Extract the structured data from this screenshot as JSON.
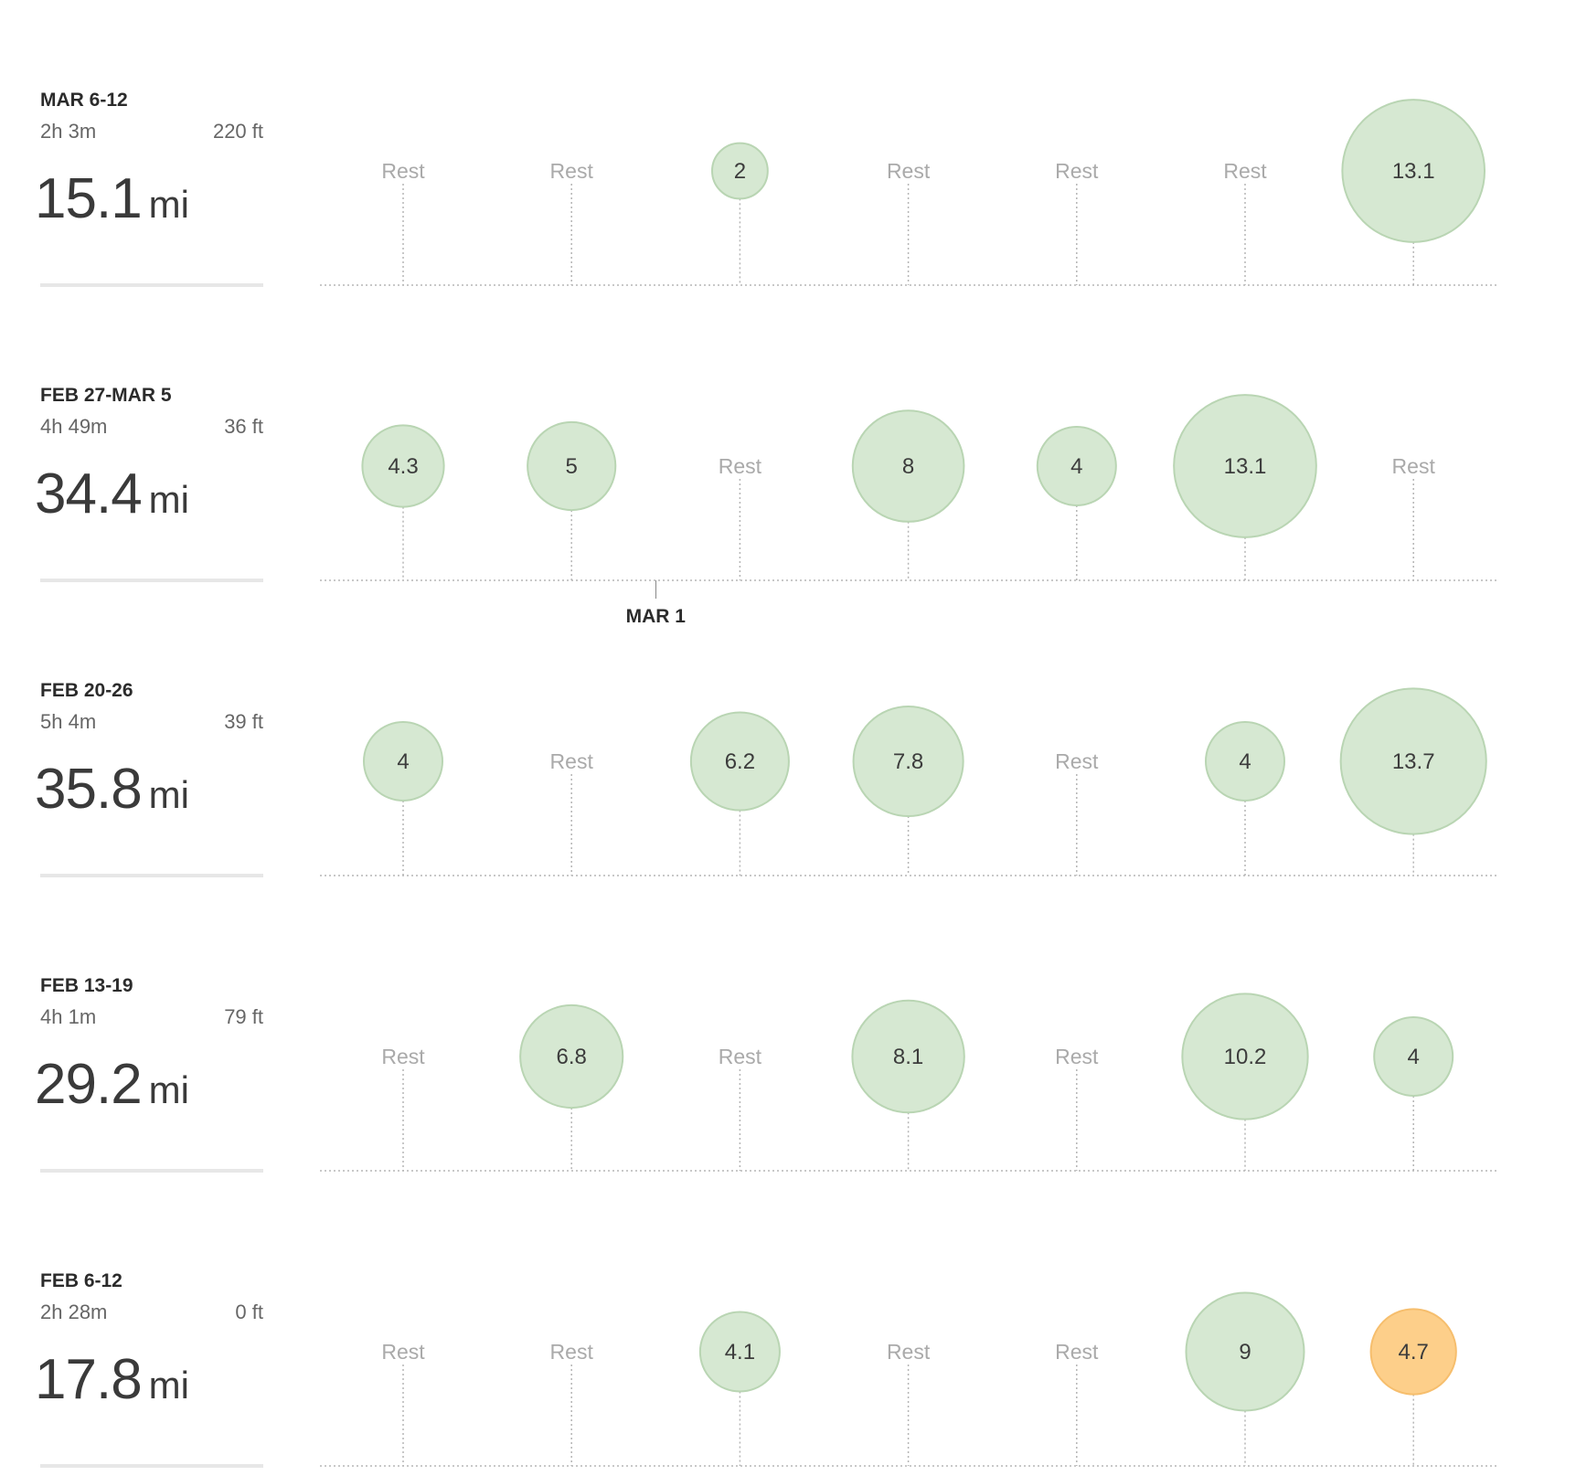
{
  "colors": {
    "run_fill": "#d6e8d2",
    "run_stroke": "#b9d5b3",
    "highlight_fill": "#fdcf8a",
    "highlight_stroke": "#f6be6d",
    "rest_text": "#aaaaaa",
    "run_text": "#3c3c3c",
    "guide_line": "#b5b5b5"
  },
  "rest_label": "Rest",
  "month_marker": {
    "label": "MAR 1",
    "after_week": 1,
    "between_days": [
      1,
      2
    ]
  },
  "weeks": [
    {
      "label": "MAR 6-12",
      "duration": "2h 3m",
      "elevation": "220 ft",
      "total_value": "15.1",
      "total_unit": "mi",
      "days": [
        {
          "miles": null,
          "label": "Rest"
        },
        {
          "miles": null,
          "label": "Rest"
        },
        {
          "miles": 2,
          "label": "2"
        },
        {
          "miles": null,
          "label": "Rest"
        },
        {
          "miles": null,
          "label": "Rest"
        },
        {
          "miles": null,
          "label": "Rest"
        },
        {
          "miles": 13.1,
          "label": "13.1"
        }
      ]
    },
    {
      "label": "FEB 27-MAR 5",
      "duration": "4h 49m",
      "elevation": "36 ft",
      "total_value": "34.4",
      "total_unit": "mi",
      "days": [
        {
          "miles": 4.3,
          "label": "4.3"
        },
        {
          "miles": 5,
          "label": "5"
        },
        {
          "miles": null,
          "label": "Rest"
        },
        {
          "miles": 8,
          "label": "8"
        },
        {
          "miles": 4,
          "label": "4"
        },
        {
          "miles": 13.1,
          "label": "13.1"
        },
        {
          "miles": null,
          "label": "Rest"
        }
      ]
    },
    {
      "label": "FEB 20-26",
      "duration": "5h 4m",
      "elevation": "39 ft",
      "total_value": "35.8",
      "total_unit": "mi",
      "days": [
        {
          "miles": 4,
          "label": "4"
        },
        {
          "miles": null,
          "label": "Rest"
        },
        {
          "miles": 6.2,
          "label": "6.2"
        },
        {
          "miles": 7.8,
          "label": "7.8"
        },
        {
          "miles": null,
          "label": "Rest"
        },
        {
          "miles": 4,
          "label": "4"
        },
        {
          "miles": 13.7,
          "label": "13.7"
        }
      ]
    },
    {
      "label": "FEB 13-19",
      "duration": "4h 1m",
      "elevation": "79 ft",
      "total_value": "29.2",
      "total_unit": "mi",
      "days": [
        {
          "miles": null,
          "label": "Rest"
        },
        {
          "miles": 6.8,
          "label": "6.8"
        },
        {
          "miles": null,
          "label": "Rest"
        },
        {
          "miles": 8.1,
          "label": "8.1"
        },
        {
          "miles": null,
          "label": "Rest"
        },
        {
          "miles": 10.2,
          "label": "10.2"
        },
        {
          "miles": 4,
          "label": "4"
        }
      ]
    },
    {
      "label": "FEB 6-12",
      "duration": "2h 28m",
      "elevation": "0 ft",
      "total_value": "17.8",
      "total_unit": "mi",
      "days": [
        {
          "miles": null,
          "label": "Rest"
        },
        {
          "miles": null,
          "label": "Rest"
        },
        {
          "miles": 4.1,
          "label": "4.1"
        },
        {
          "miles": null,
          "label": "Rest"
        },
        {
          "miles": null,
          "label": "Rest"
        },
        {
          "miles": 9,
          "label": "9"
        },
        {
          "miles": 4.7,
          "label": "4.7",
          "highlight": true
        }
      ]
    }
  ]
}
